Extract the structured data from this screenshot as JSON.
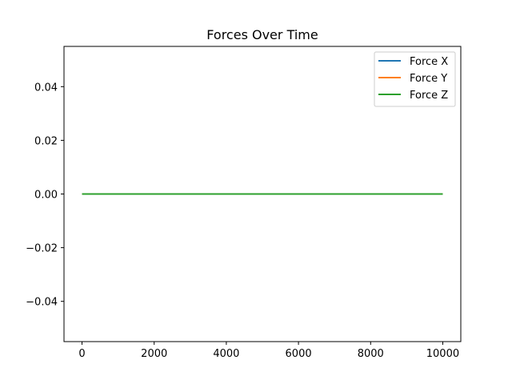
{
  "chart_data": {
    "type": "line",
    "title": "Forces Over Time",
    "xlabel": "",
    "ylabel": "",
    "xlim": [
      -500,
      10500
    ],
    "ylim": [
      -0.055,
      0.055
    ],
    "x_ticks": [
      0,
      2000,
      4000,
      6000,
      8000,
      10000
    ],
    "x_tick_labels": [
      "0",
      "2000",
      "4000",
      "6000",
      "8000",
      "10000"
    ],
    "y_ticks": [
      -0.04,
      -0.02,
      0.0,
      0.02,
      0.04
    ],
    "y_tick_labels": [
      "−0.04",
      "−0.02",
      "0.00",
      "0.02",
      "0.04"
    ],
    "grid": false,
    "legend_position": "top-right",
    "x": [
      0,
      10000
    ],
    "series": [
      {
        "name": "Force X",
        "color": "#1f77b4",
        "values": [
          0,
          0
        ]
      },
      {
        "name": "Force Y",
        "color": "#ff7f0e",
        "values": [
          0,
          0
        ]
      },
      {
        "name": "Force Z",
        "color": "#2ca02c",
        "values": [
          0,
          0
        ]
      }
    ]
  }
}
